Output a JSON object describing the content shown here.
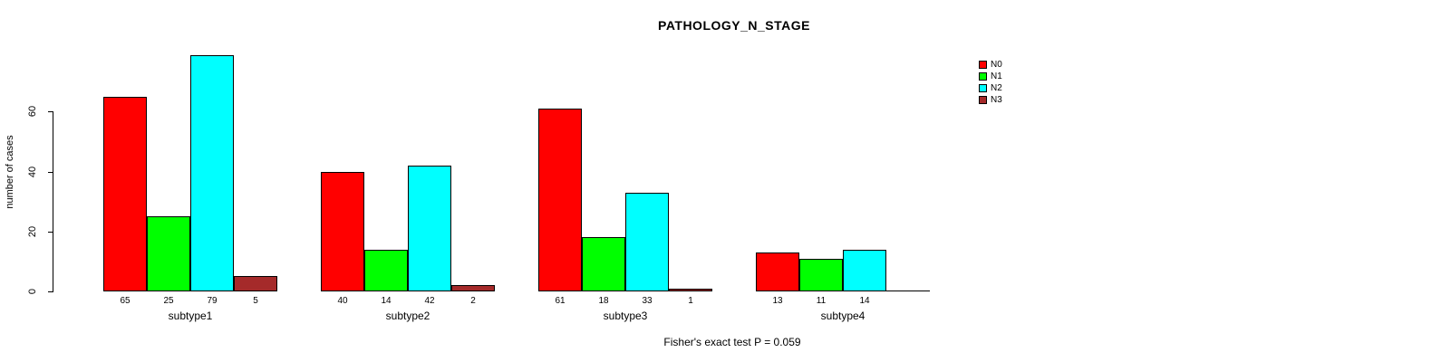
{
  "page": {
    "background": "#ffffff"
  },
  "chart_data": {
    "type": "bar",
    "title": "PATHOLOGY_N_STAGE",
    "ylabel": "number of cases",
    "xlabel": "",
    "footer": "Fisher's exact test P = 0.059",
    "categories": [
      "subtype1",
      "subtype2",
      "subtype3",
      "subtype4"
    ],
    "series": [
      {
        "name": "N0",
        "color": "#FF0000",
        "values": [
          65,
          40,
          61,
          13
        ]
      },
      {
        "name": "N1",
        "color": "#00FF00",
        "values": [
          25,
          14,
          18,
          11
        ]
      },
      {
        "name": "N2",
        "color": "#00FFFF",
        "values": [
          79,
          42,
          33,
          14
        ]
      },
      {
        "name": "N3",
        "color": "#A52A2A",
        "values": [
          5,
          2,
          1,
          0
        ]
      }
    ],
    "bar_labels": [
      [
        "65",
        "25",
        "79",
        "5"
      ],
      [
        "40",
        "14",
        "42",
        "2"
      ],
      [
        "61",
        "18",
        "33",
        "1"
      ],
      [
        "13",
        "11",
        "14",
        ""
      ]
    ],
    "y_ticks": [
      0,
      20,
      40,
      60
    ],
    "ylim": [
      0,
      80
    ],
    "grid": false,
    "legend": {
      "position": "top-right",
      "entries": [
        "N0",
        "N1",
        "N2",
        "N3"
      ]
    },
    "bar_border_color": "#000000",
    "axis_color": "#000000"
  }
}
